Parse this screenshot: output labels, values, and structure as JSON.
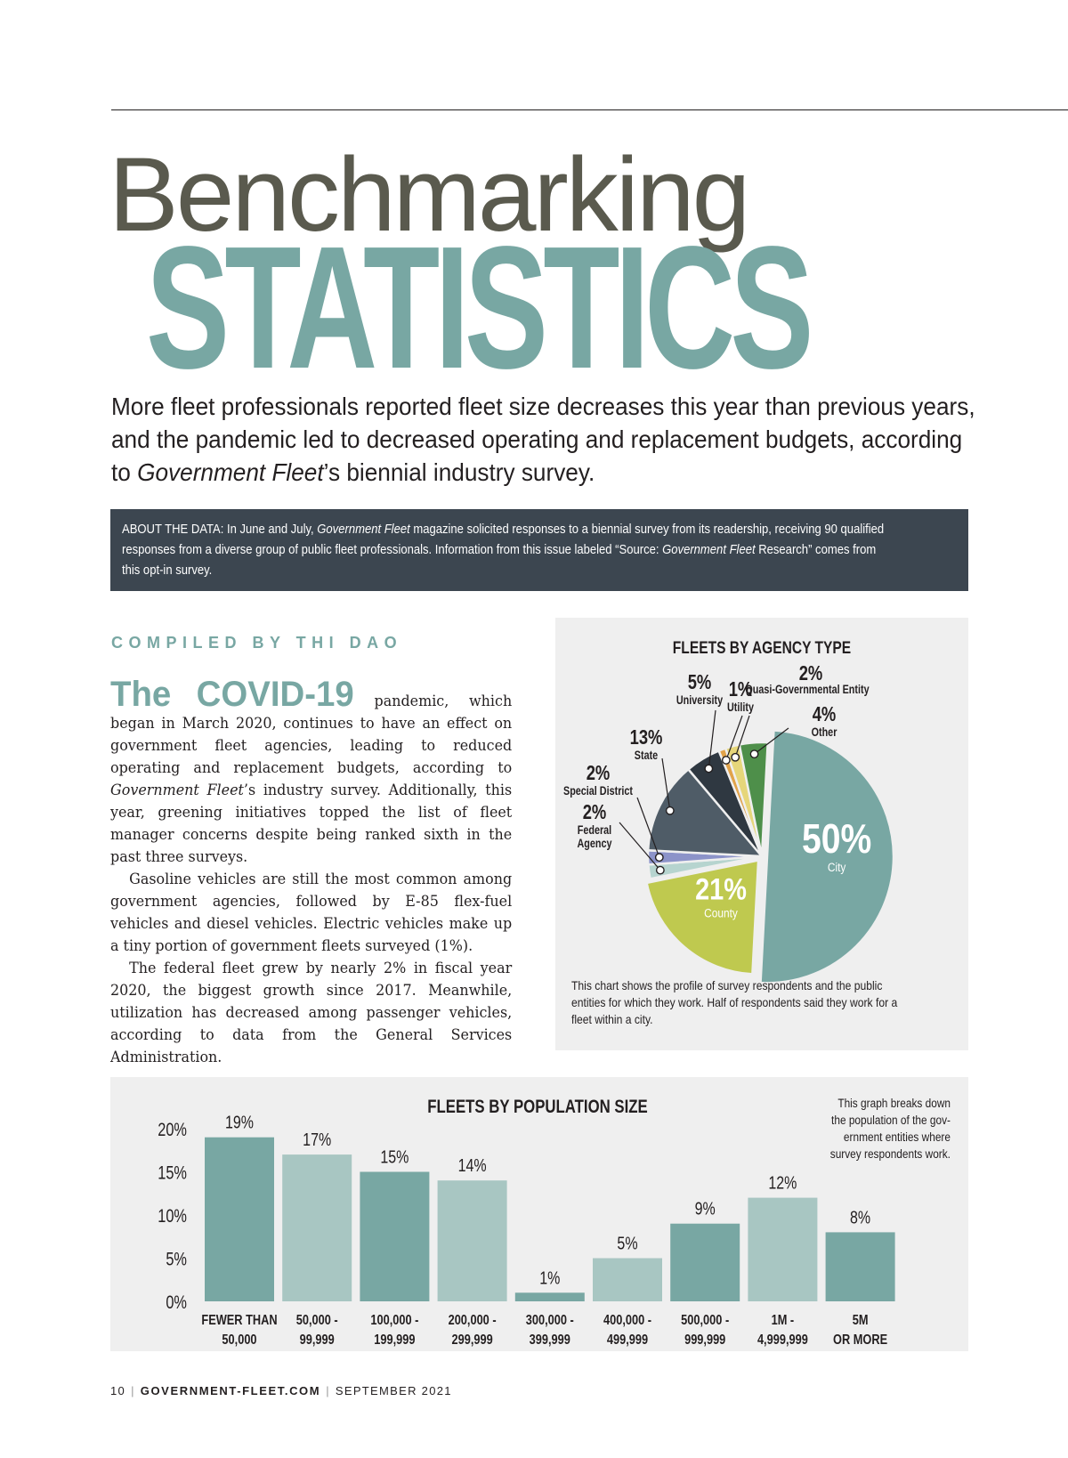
{
  "header": {
    "title_light": "Benchmarking",
    "title_bold": "STATISTICS",
    "deck_lines": [
      "More fleet professionals reported fleet size decreases this year than previous years,",
      "and the pandemic led to decreased operating and replacement budgets, according",
      "to "
    ],
    "deck_italic": "Government Fleet",
    "deck_end": "’s biennial industry survey."
  },
  "about": {
    "part1": "ABOUT THE DATA: In June and July, ",
    "italic1": "Government Fleet",
    "part2": " magazine solicited responses to a biennial survey from its readership, receiving 90 qualified",
    "part3": "responses from a diverse group of public fleet professionals. Information from this issue labeled “Source: ",
    "italic2": "Government Fleet",
    "part4": " Research” comes from",
    "part5": "this opt-in survey."
  },
  "byline": "COMPILED BY THI DAO",
  "article": {
    "lead_in": "The COVID-19",
    "p1_a": " pandemic, which began in March 2020, continues to have an effect on government fleet agencies, leading to reduced operating and replacement budgets, according to ",
    "p1_italic": "Government Fleet",
    "p1_b": "’s industry survey. Additionally, this year, greening initiatives topped the list of fleet manager concerns despite being ranked sixth in the past three surveys.",
    "p2": "Gasoline vehicles are still the most common among government agencies, followed by E-85 flex-fuel vehicles and diesel vehicles. Electric vehicles make up a tiny portion of government fleets surveyed (1%).",
    "p3": "The federal fleet grew by nearly 2% in fiscal year 2020, the biggest growth since 2017. Meanwhile, utilization has decreased among passenger vehicles, according to data from the General Services Administration."
  },
  "chart_data": [
    {
      "type": "pie",
      "title": "FLEETS BY AGENCY TYPE",
      "slices": [
        {
          "label": "City",
          "value": 50,
          "display": "50%",
          "color": "#78a7a3"
        },
        {
          "label": "County",
          "value": 21,
          "display": "21%",
          "color": "#bfc94f"
        },
        {
          "label": "Federal Agency",
          "value": 2,
          "display": "2%",
          "color": "#b6d4cf"
        },
        {
          "label": "Special District",
          "value": 2,
          "display": "2%",
          "color": "#8c93c9"
        },
        {
          "label": "State",
          "value": 13,
          "display": "13%",
          "color": "#4f5c67"
        },
        {
          "label": "University",
          "value": 5,
          "display": "5%",
          "color": "#2f3841"
        },
        {
          "label": "Utility",
          "value": 1,
          "display": "1%",
          "color": "#e1a34a"
        },
        {
          "label": "Quasi-Governmental Entity",
          "value": 2,
          "display": "2%",
          "color": "#e6d67a"
        },
        {
          "label": "Other",
          "value": 4,
          "display": "4%",
          "color": "#4e8f4a"
        }
      ],
      "caption": [
        "This chart shows the profile of survey respondents and the public",
        "entities for which they work. Half of respondents said they work for a",
        "fleet within a city."
      ]
    },
    {
      "type": "bar",
      "title": "FLEETS BY POPULATION SIZE",
      "categories": [
        [
          "FEWER THAN",
          "50,000"
        ],
        [
          "50,000 -",
          "99,999"
        ],
        [
          "100,000 -",
          "199,999"
        ],
        [
          "200,000 -",
          "299,999"
        ],
        [
          "300,000 -",
          "399,999"
        ],
        [
          "400,000 -",
          "499,999"
        ],
        [
          "500,000 -",
          "999,999"
        ],
        [
          "1M -",
          "4,999,999"
        ],
        [
          "5M",
          "OR MORE"
        ]
      ],
      "values": [
        19,
        17,
        15,
        14,
        1,
        5,
        9,
        12,
        8
      ],
      "value_labels": [
        "19%",
        "17%",
        "15%",
        "14%",
        "1%",
        "5%",
        "9%",
        "12%",
        "8%"
      ],
      "yticks": [
        "20%",
        "15%",
        "10%",
        "5%",
        "0%"
      ],
      "ylim": [
        0,
        20
      ],
      "colors": [
        "#78a7a3",
        "#a8c6c2"
      ],
      "note": [
        "This graph breaks down",
        "the population of the gov-",
        "ernment entities where",
        "survey respondents work."
      ]
    }
  ],
  "footer": {
    "page": "10",
    "site": "GOVERNMENT-FLEET.COM",
    "issue": "SEPTEMBER 2021"
  }
}
